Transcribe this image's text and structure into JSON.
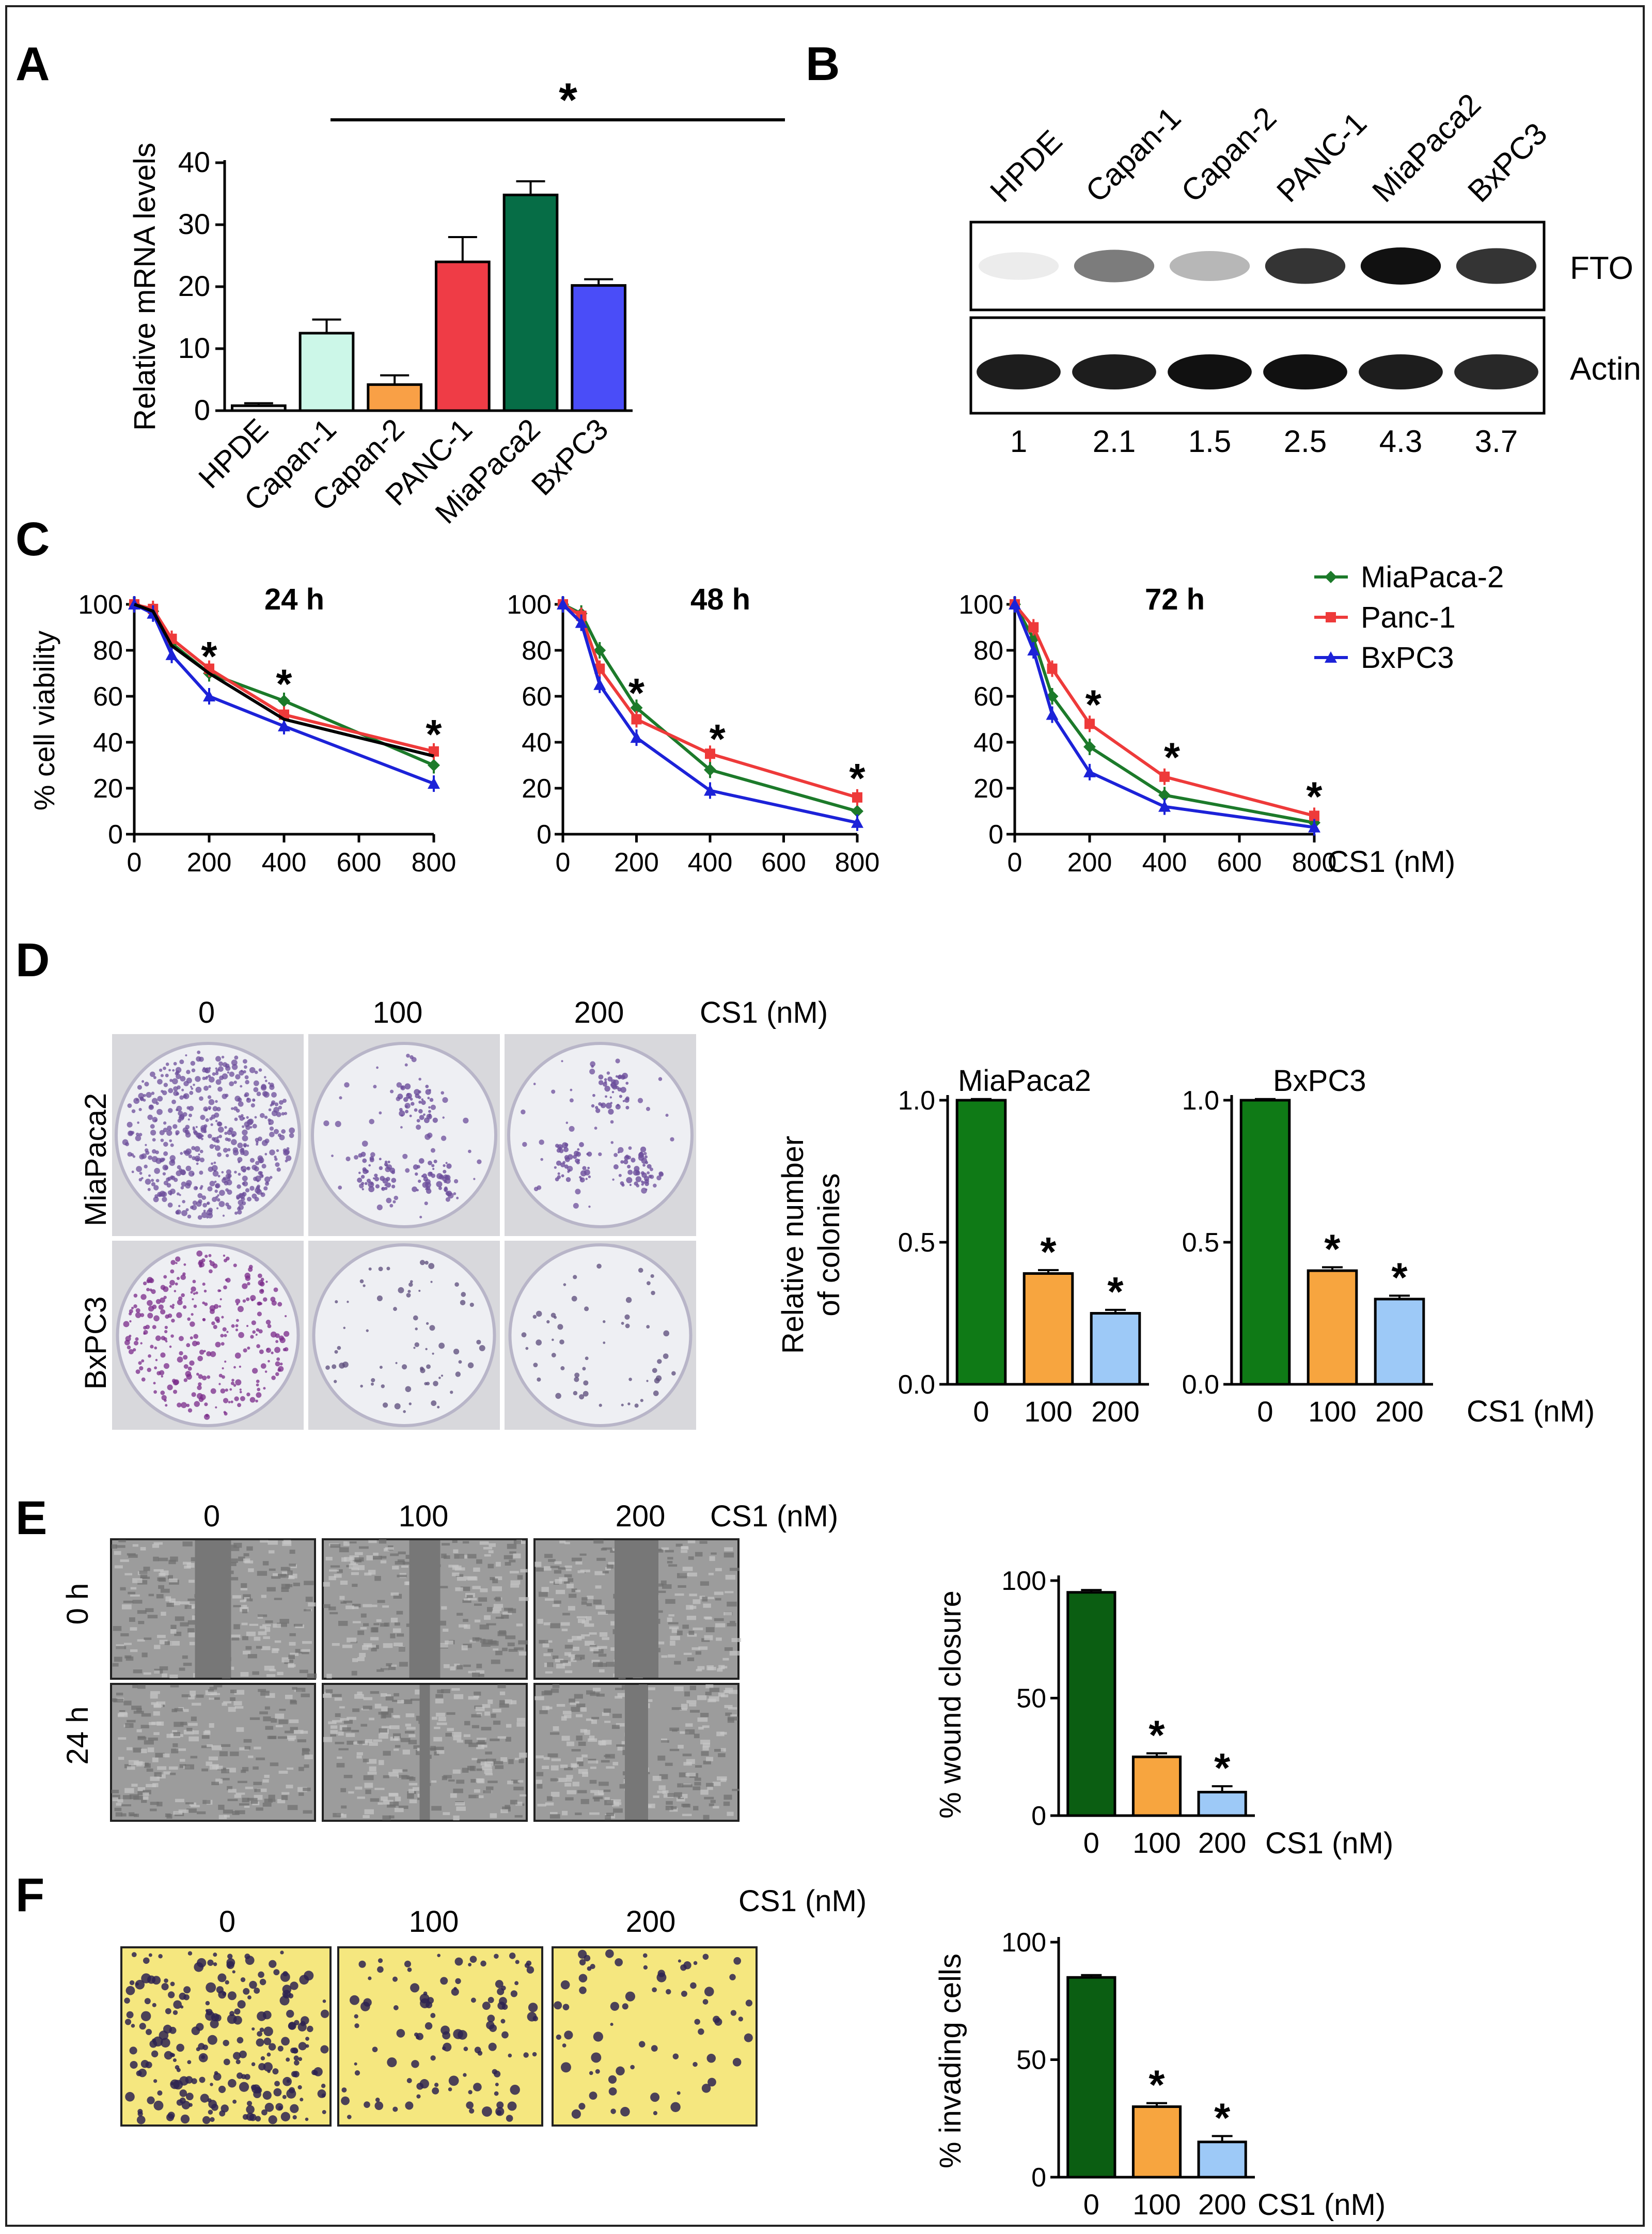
{
  "panels": {
    "A": "A",
    "B": "B",
    "C": "C",
    "D": "D",
    "E": "E",
    "F": "F"
  },
  "colors": {
    "mint": "#ccf7e8",
    "orange": "#f9a046",
    "red": "#ef3c46",
    "darkgreen": "#066d46",
    "blue": "#4a4df8",
    "green_line": "#1c7a2a",
    "red_line": "#ee3a3a",
    "blue_line": "#1c22d8",
    "bar_green": "#0f7a16",
    "bar_orange": "#f7a53f",
    "bar_lightblue": "#9dc9f7",
    "bar_darkgreen": "#0b5e12",
    "plate_purple": "#6c4d9b",
    "gray_cell": "#8c8c8c",
    "invasion_yellow": "#f5e77f"
  },
  "chart_data": [
    {
      "id": "A",
      "type": "bar",
      "categories": [
        "HPDE",
        "Capan-1",
        "Capan-2",
        "PANC-1",
        "MiaPaca2",
        "BxPC3"
      ],
      "values": [
        0.8,
        12.5,
        4.2,
        24,
        34.8,
        20.2
      ],
      "errors": [
        0.4,
        2.2,
        1.5,
        4,
        2.2,
        1.0
      ],
      "ylabel": "Relative mRNA levels",
      "ylim": [
        0,
        40
      ],
      "yticks": [
        0,
        10,
        20,
        30,
        40
      ],
      "significance": "*"
    },
    {
      "id": "B",
      "type": "table",
      "lanes": [
        "HPDE",
        "Capan-1",
        "Capan-2",
        "PANC-1",
        "MiaPaca2",
        "BxPC3"
      ],
      "rows": [
        "FTO",
        "Actin"
      ],
      "quant": [
        "1",
        "2.1",
        "1.5",
        "2.5",
        "4.3",
        "3.7"
      ],
      "fto_intensity": [
        0.08,
        0.55,
        0.3,
        0.85,
        1.0,
        0.85
      ],
      "actin_intensity": [
        0.95,
        0.95,
        1.0,
        1.0,
        0.95,
        0.9
      ]
    },
    {
      "id": "C",
      "type": "line",
      "x": [
        0,
        50,
        100,
        200,
        400,
        800
      ],
      "xticks": [
        0,
        200,
        400,
        600,
        800
      ],
      "yticks": [
        0,
        20,
        40,
        60,
        80,
        100
      ],
      "ylabel": "% cell viability",
      "xlabel": "CS1  (nM)",
      "ylim": [
        0,
        100
      ],
      "xlim": [
        0,
        800
      ],
      "legend": [
        "MiaPaca-2",
        "Panc-1",
        "BxPC3"
      ],
      "subplots": [
        {
          "title": "24 h",
          "series": [
            {
              "name": "MiaPaca-2",
              "values": [
                100,
                97,
                83,
                70,
                58,
                30
              ]
            },
            {
              "name": "Panc-1",
              "values": [
                100,
                98,
                85,
                72,
                52,
                36
              ]
            },
            {
              "name": "BxPC3",
              "values": [
                100,
                96,
                78,
                60,
                47,
                22
              ]
            },
            {
              "name": "black",
              "values": [
                100,
                97,
                82,
                70,
                50,
                34
              ]
            }
          ],
          "stars_x": [
            200,
            400,
            800
          ],
          "stars_y": [
            78,
            66,
            44
          ]
        },
        {
          "title": "48 h",
          "series": [
            {
              "name": "MiaPaca-2",
              "values": [
                100,
                96,
                80,
                55,
                28,
                10
              ]
            },
            {
              "name": "Panc-1",
              "values": [
                100,
                95,
                72,
                50,
                35,
                16
              ]
            },
            {
              "name": "BxPC3",
              "values": [
                100,
                92,
                65,
                42,
                19,
                5
              ]
            }
          ],
          "stars_x": [
            200,
            420,
            800
          ],
          "stars_y": [
            62,
            42,
            25
          ]
        },
        {
          "title": "72 h",
          "series": [
            {
              "name": "MiaPaca-2",
              "values": [
                100,
                85,
                60,
                38,
                17,
                5
              ]
            },
            {
              "name": "Panc-1",
              "values": [
                100,
                90,
                72,
                48,
                25,
                8
              ]
            },
            {
              "name": "BxPC3",
              "values": [
                100,
                80,
                52,
                27,
                12,
                3
              ]
            }
          ],
          "stars_x": [
            210,
            420,
            800
          ],
          "stars_y": [
            57,
            34,
            17
          ]
        }
      ]
    },
    {
      "id": "D",
      "type": "bar",
      "header_doses": [
        "0",
        "100",
        "200"
      ],
      "header_unit": "CS1  (nM)",
      "row_labels": [
        "MiaPaca2",
        "BxPC3"
      ],
      "categories": [
        "0",
        "100",
        "200"
      ],
      "ylabel_line1": "Relative number",
      "ylabel_line2": "of colonies",
      "yticks": [
        "0.0",
        "0.5",
        "1.0"
      ],
      "ylim": [
        0,
        1.0
      ],
      "series": [
        {
          "name": "MiaPaca2",
          "values": [
            1.0,
            0.39,
            0.25
          ]
        },
        {
          "name": "BxPC3",
          "values": [
            1.0,
            0.4,
            0.3
          ]
        }
      ],
      "xunit": "CS1  (nM)"
    },
    {
      "id": "E",
      "type": "bar",
      "header_doses": [
        "0",
        "100",
        "200"
      ],
      "header_unit": "CS1  (nM)",
      "row_labels": [
        "0 h",
        "24 h"
      ],
      "categories": [
        "0",
        "100",
        "200"
      ],
      "values": [
        95,
        25,
        10
      ],
      "errors": [
        1,
        1.5,
        2.5
      ],
      "ylabel": "% wound closure",
      "ylim": [
        0,
        100
      ],
      "yticks": [
        "0",
        "50",
        "100"
      ],
      "xunit": "CS1  (nM)"
    },
    {
      "id": "F",
      "type": "bar",
      "header_doses": [
        "0",
        "100",
        "200"
      ],
      "header_unit": "CS1  (nM)",
      "categories": [
        "0",
        "100",
        "200"
      ],
      "values": [
        85,
        30,
        15
      ],
      "errors": [
        1,
        1.5,
        2.5
      ],
      "ylabel": "% invading cells",
      "ylim": [
        0,
        100
      ],
      "yticks": [
        "0",
        "50",
        "100"
      ],
      "xunit": "CS1  (nM)"
    }
  ]
}
